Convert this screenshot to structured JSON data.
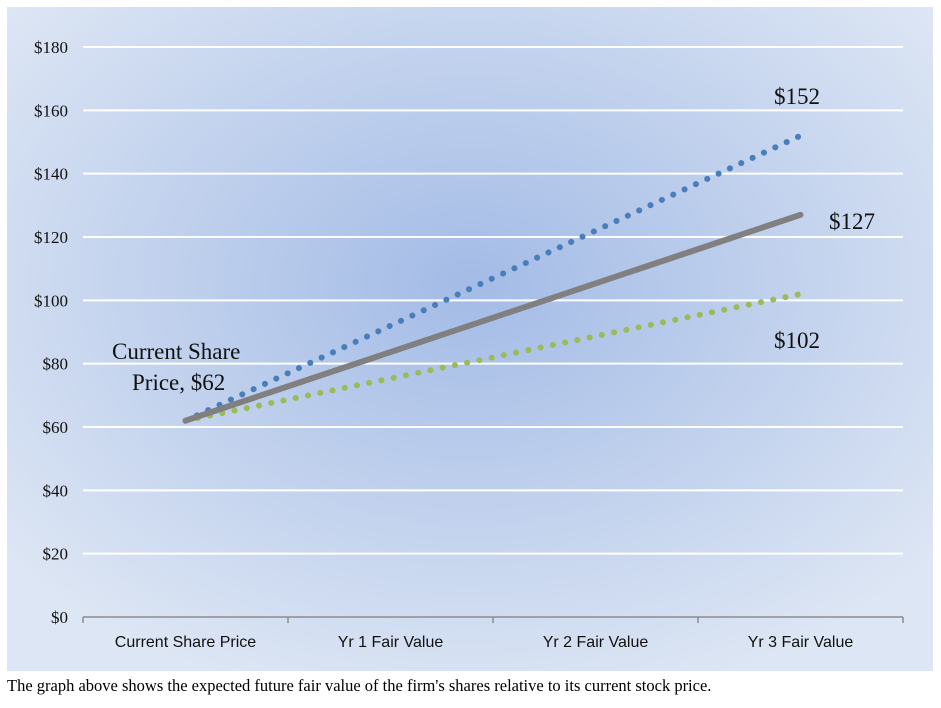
{
  "chart_data": {
    "type": "line",
    "categories": [
      "Current Share Price",
      "Yr 1 Fair Value",
      "Yr 2 Fair Value",
      "Yr 3 Fair Value"
    ],
    "series": [
      {
        "values": [
          62,
          92,
          122,
          152
        ],
        "color": "#4a7ebb",
        "style": "dotted"
      },
      {
        "values": [
          62,
          83.67,
          105.33,
          127
        ],
        "color": "#808080",
        "style": "solid"
      },
      {
        "values": [
          62,
          75.33,
          88.67,
          102
        ],
        "color": "#9bbb59",
        "style": "dotted"
      }
    ],
    "ylim": [
      0,
      180
    ],
    "yticks": [
      0,
      20,
      40,
      60,
      80,
      100,
      120,
      140,
      160,
      180
    ],
    "ytick_labels": [
      "$0",
      "$20",
      "$40",
      "$60",
      "$80",
      "$100",
      "$120",
      "$140",
      "$160",
      "$180"
    ],
    "grid": true,
    "legend": "none",
    "annotations": {
      "start_line1": "Current Share",
      "start_line2": "Price, $62",
      "high": "$152",
      "mid": "$127",
      "low": "$102"
    },
    "background": {
      "center": "#a3bbe6",
      "edge": "#dde6f4",
      "grid": "#ffffff"
    }
  },
  "caption": "The graph above shows the expected future fair value of the firm's shares relative to its current stock price."
}
